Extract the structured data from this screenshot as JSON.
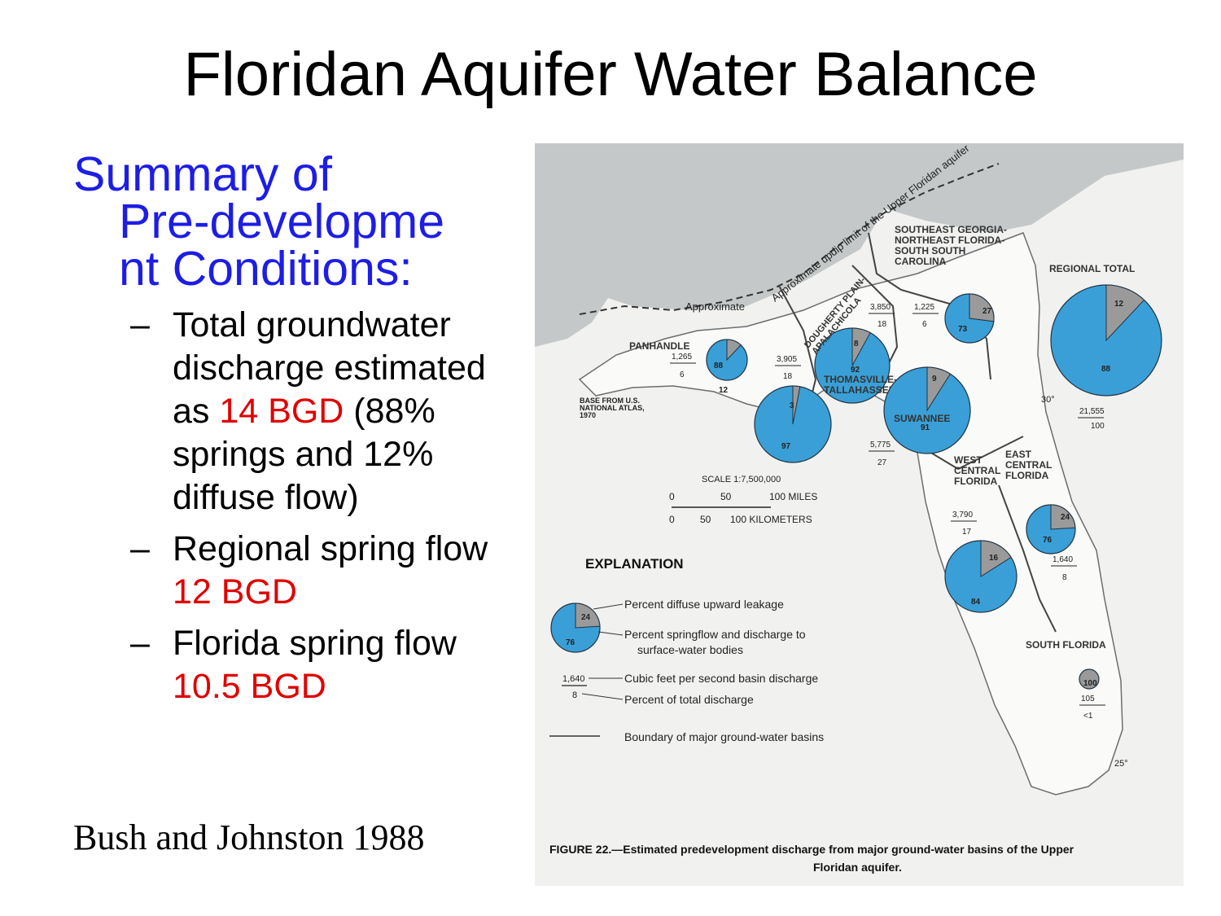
{
  "slide": {
    "title": "Floridan Aquifer Water Balance",
    "heading": [
      "Summary of",
      "Pre-developme",
      "nt Conditions:"
    ],
    "bullets": [
      {
        "parts": [
          {
            "t": "Total groundwater discharge estimated as ",
            "c": "black"
          },
          {
            "t": "14 BGD",
            "c": "red"
          },
          {
            "t": " (88% springs and 12% diffuse flow)",
            "c": "black"
          }
        ]
      },
      {
        "parts": [
          {
            "t": "Regional spring flow ",
            "c": "black"
          },
          {
            "t": "12 BGD",
            "c": "red"
          }
        ]
      },
      {
        "parts": [
          {
            "t": "Florida spring flow ",
            "c": "black"
          },
          {
            "t": "10.5 BGD",
            "c": "red"
          }
        ]
      }
    ],
    "bullet_dash": "–",
    "citation": "Bush and Johnston 1988",
    "colors": {
      "heading": "#1d1de6",
      "highlight": "#e00000",
      "pie": "#3a9fd6",
      "pie_slice": "#9a9a9a"
    }
  },
  "map": {
    "updip_label": "Approximate updip limit of the Upper Floridan aquifer",
    "base_note": [
      "BASE FROM U.S.",
      "NATIONAL ATLAS,",
      "1970"
    ],
    "scale": {
      "ratio": "SCALE 1:7,500,000",
      "miles": [
        "0",
        "50",
        "100 MILES"
      ],
      "km": [
        "0",
        "50",
        "100 KILOMETERS"
      ]
    },
    "lat_labels": [
      "30°",
      "25°"
    ],
    "basins": [
      {
        "name": [
          "PANHANDLE"
        ],
        "cfs": "1,265",
        "pct": "6",
        "springs": 88,
        "diffuse": 12
      },
      {
        "name": [
          "DOUGHERTY PLAIN-",
          "APALACHICOLA"
        ],
        "cfs": "3,905",
        "pct": "18",
        "springs": 97,
        "diffuse": 3
      },
      {
        "name": [
          "THOMASVILLE-",
          "TALLAHASSEE"
        ],
        "cfs": "3,850",
        "pct": "18",
        "springs": 92,
        "diffuse": 8
      },
      {
        "name": [
          "SOUTHEAST GEORGIA-",
          "NORTHEAST FLORIDA-",
          "SOUTH SOUTH",
          "CAROLINA"
        ],
        "cfs": "1,225",
        "pct": "6",
        "springs": 73,
        "diffuse": 27
      },
      {
        "name": [
          "SUWANNEE"
        ],
        "cfs": "5,775",
        "pct": "27",
        "springs": 91,
        "diffuse": 9
      },
      {
        "name": [
          "WEST",
          "CENTRAL",
          "FLORIDA"
        ],
        "cfs": "3,790",
        "pct": "17",
        "springs": 84,
        "diffuse": 16
      },
      {
        "name": [
          "EAST",
          "CENTRAL",
          "FLORIDA"
        ],
        "cfs": "1,640",
        "pct": "8",
        "springs": 76,
        "diffuse": 24
      },
      {
        "name": [
          "SOUTH FLORIDA"
        ],
        "cfs": "105",
        "pct": "<1",
        "springs": 0,
        "diffuse": 100
      },
      {
        "name": [
          "REGIONAL TOTAL"
        ],
        "cfs": "21,555",
        "pct": "100",
        "springs": 88,
        "diffuse": 12
      }
    ],
    "explanation": {
      "title": "EXPLANATION",
      "sample_diffuse": "24",
      "sample_springs": "76",
      "sample_cfs": "1,640",
      "sample_pct": "8",
      "items": [
        "Percent diffuse upward leakage",
        "Percent springflow and discharge to",
        "surface-water bodies",
        "Cubic feet per second basin discharge",
        "Percent of total discharge",
        "Boundary of major ground-water basins"
      ]
    },
    "caption": [
      "FIGURE 22.—Estimated predevelopment discharge from major ground-water basins of the Upper",
      "Floridan aquifer."
    ]
  }
}
